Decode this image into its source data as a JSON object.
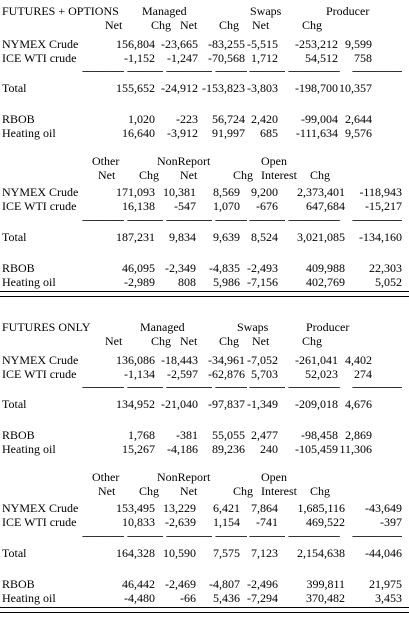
{
  "sections": [
    {
      "title": "FUTURES + OPTIONS",
      "header1": [
        "Managed",
        "Swaps",
        "Producer"
      ],
      "header2": [
        "Net",
        "Chg",
        "Net",
        "Chg",
        "Net",
        "Chg"
      ],
      "rows1": [
        {
          "label": "NYMEX Crude",
          "values": [
            "156,804",
            "-23,665",
            "-83,255",
            "-5,515",
            "-253,212",
            "9,599"
          ]
        },
        {
          "label": "ICE WTI crude",
          "values": [
            "-1,152",
            "-1,247",
            "-70,568",
            "1,712",
            "54,512",
            "758"
          ]
        }
      ],
      "total1": {
        "label": "Total",
        "values": [
          "155,652",
          "-24,912",
          "-153,823",
          "-3,803",
          "-198,700",
          "10,357"
        ]
      },
      "rows1b": [
        {
          "label": "RBOB",
          "values": [
            "1,020",
            "-223",
            "56,724",
            "2,420",
            "-99,004",
            "2,644"
          ]
        },
        {
          "label": "Heating oil",
          "values": [
            "16,640",
            "-3,912",
            "91,997",
            "685",
            "-111,634",
            "9,576"
          ]
        }
      ],
      "header3": [
        "Other",
        "NonReport",
        "Open"
      ],
      "header4": [
        "Net",
        "Chg",
        "Net",
        "Chg",
        "Interest",
        "Chg"
      ],
      "rows2": [
        {
          "label": "NYMEX Crude",
          "values": [
            "171,093",
            "10,381",
            "8,569",
            "9,200",
            "2,373,401",
            "-118,943"
          ]
        },
        {
          "label": "ICE WTI crude",
          "values": [
            "16,138",
            "-547",
            "1,070",
            "-676",
            "647,684",
            "-15,217"
          ]
        }
      ],
      "total2": {
        "label": "Total",
        "values": [
          "187,231",
          "9,834",
          "9,639",
          "8,524",
          "3,021,085",
          "-134,160"
        ]
      },
      "rows2b": [
        {
          "label": "RBOB",
          "values": [
            "46,095",
            "-2,349",
            "-4,835",
            "-2,493",
            "409,988",
            "22,303"
          ]
        },
        {
          "label": "Heating oil",
          "values": [
            "-2,989",
            "808",
            "5,986",
            "-7,156",
            "402,769",
            "5,052"
          ]
        }
      ]
    },
    {
      "title": "FUTURES ONLY",
      "header1": [
        "Managed",
        "Swaps",
        "Producer"
      ],
      "header2": [
        "Net",
        "Chg",
        "Net",
        "Chg",
        "Net",
        "Chg"
      ],
      "rows1": [
        {
          "label": "NYMEX Crude",
          "values": [
            "136,086",
            "-18,443",
            "-34,961",
            "-7,052",
            "-261,041",
            "4,402"
          ]
        },
        {
          "label": "ICE WTI crude",
          "values": [
            "-1,134",
            "-2,597",
            "-62,876",
            "5,703",
            "52,023",
            "274"
          ]
        }
      ],
      "total1": {
        "label": "Total",
        "values": [
          "134,952",
          "-21,040",
          "-97,837",
          "-1,349",
          "-209,018",
          "4,676"
        ]
      },
      "rows1b": [
        {
          "label": "RBOB",
          "values": [
            "1,768",
            "-381",
            "55,055",
            "2,477",
            "-98,458",
            "2,869"
          ]
        },
        {
          "label": "Heating oil",
          "values": [
            "15,267",
            "-4,186",
            "89,236",
            "240",
            "-105,459",
            "11,306"
          ]
        }
      ],
      "header3": [
        "Other",
        "NonReport",
        "Open"
      ],
      "header4": [
        "Net",
        "Chg",
        "Net",
        "Chg",
        "Interest",
        "Chg"
      ],
      "rows2": [
        {
          "label": "NYMEX Crude",
          "values": [
            "153,495",
            "13,229",
            "6,421",
            "7,864",
            "1,685,116",
            "-43,649"
          ]
        },
        {
          "label": "ICE WTI crude",
          "values": [
            "10,833",
            "-2,639",
            "1,154",
            "-741",
            "469,522",
            "-397"
          ]
        }
      ],
      "total2": {
        "label": "Total",
        "values": [
          "164,328",
          "10,590",
          "7,575",
          "7,123",
          "2,154,638",
          "-44,046"
        ]
      },
      "rows2b": [
        {
          "label": "RBOB",
          "values": [
            "46,442",
            "-2,469",
            "-4,807",
            "-2,496",
            "399,811",
            "21,975"
          ]
        },
        {
          "label": "Heating oil",
          "values": [
            "-4,480",
            "-66",
            "5,436",
            "-7,294",
            "370,482",
            "3,453"
          ]
        }
      ]
    }
  ]
}
